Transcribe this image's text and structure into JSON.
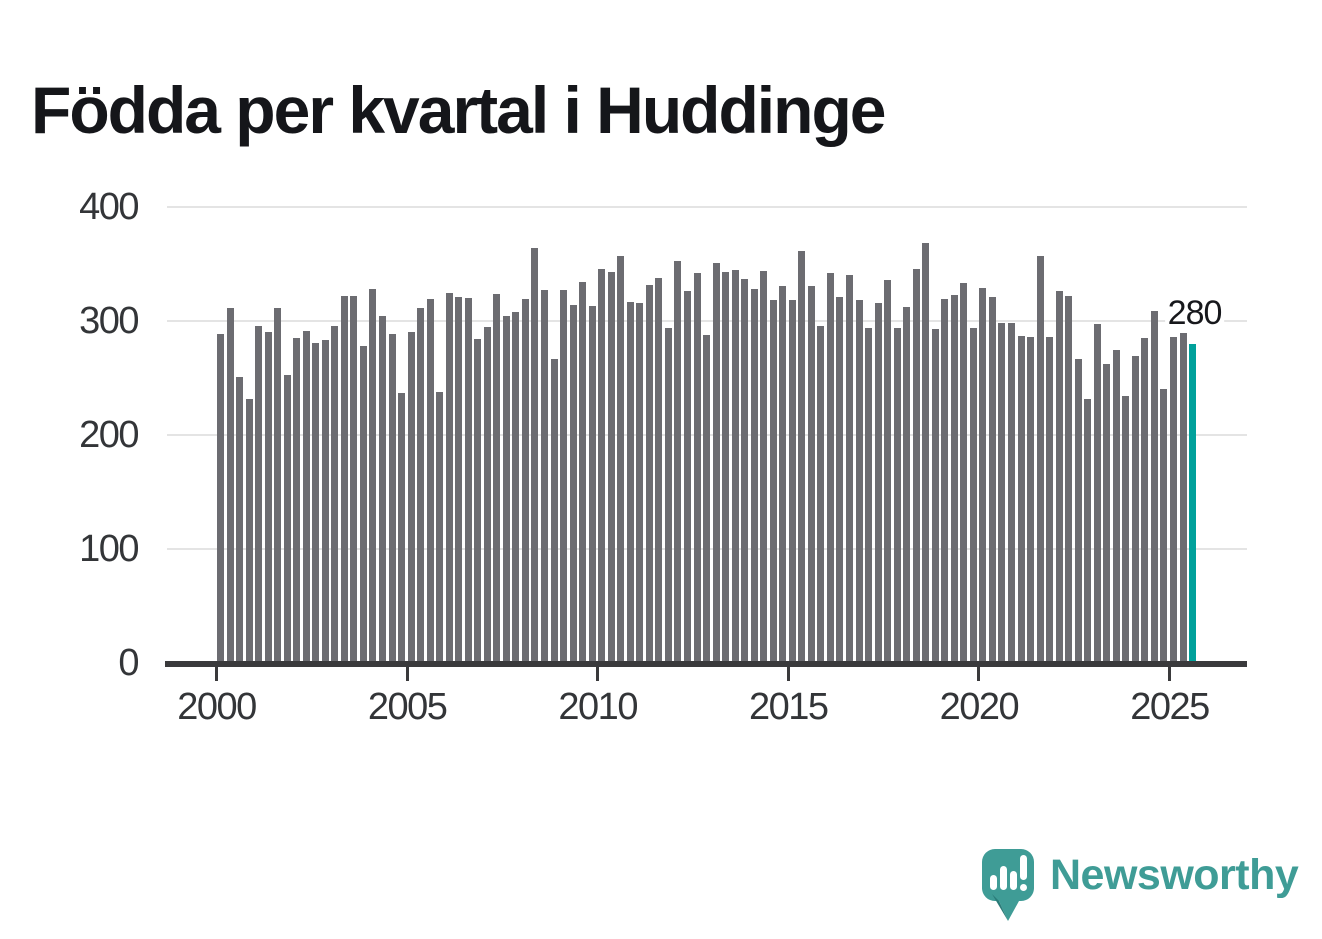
{
  "title": "Födda per kvartal i Huddinge",
  "logo": {
    "text": "Newsworthy",
    "icon": "newsworthy-speech-bubble-chart-icon"
  },
  "colors": {
    "bar_gray": "#6c6c71",
    "accent_teal": "#00a19b",
    "logo_teal": "#3f9c96",
    "logo_teal_dark": "#2a7b78",
    "axis": "#3a3a3c",
    "grid": "#e4e4e4",
    "text_dark": "#15161a",
    "tick_text": "#333538"
  },
  "chart_data": {
    "type": "bar",
    "title": "Födda per kvartal i Huddinge",
    "x_unit": "quarter",
    "x_start": "2000 Q1",
    "x_end": "2025 Q3",
    "values": [
      289,
      311,
      251,
      232,
      296,
      290,
      311,
      253,
      285,
      291,
      281,
      283,
      296,
      322,
      322,
      278,
      328,
      304,
      289,
      237,
      290,
      311,
      319,
      238,
      325,
      321,
      320,
      284,
      295,
      324,
      304,
      308,
      319,
      364,
      327,
      267,
      327,
      314,
      334,
      313,
      346,
      343,
      357,
      317,
      316,
      332,
      338,
      294,
      353,
      326,
      342,
      288,
      351,
      343,
      345,
      337,
      328,
      344,
      318,
      331,
      318,
      361,
      331,
      296,
      342,
      321,
      340,
      318,
      294,
      316,
      336,
      294,
      312,
      346,
      368,
      293,
      319,
      323,
      333,
      294,
      329,
      321,
      298,
      298,
      287,
      286,
      357,
      286,
      326,
      322,
      267,
      232,
      297,
      262,
      275,
      234,
      269,
      285,
      309,
      240,
      286,
      291,
      280
    ],
    "highlight": {
      "index": 102,
      "value": 280,
      "label": "280",
      "color": "#00a19b"
    },
    "yticks": [
      0,
      100,
      200,
      300,
      400
    ],
    "ylim": [
      0,
      400
    ],
    "xticks": [
      2000,
      2005,
      2010,
      2015,
      2020,
      2025
    ],
    "grid": true,
    "legend": "none",
    "bar_color": "#6c6c71",
    "highlight_color": "#00a19b"
  }
}
